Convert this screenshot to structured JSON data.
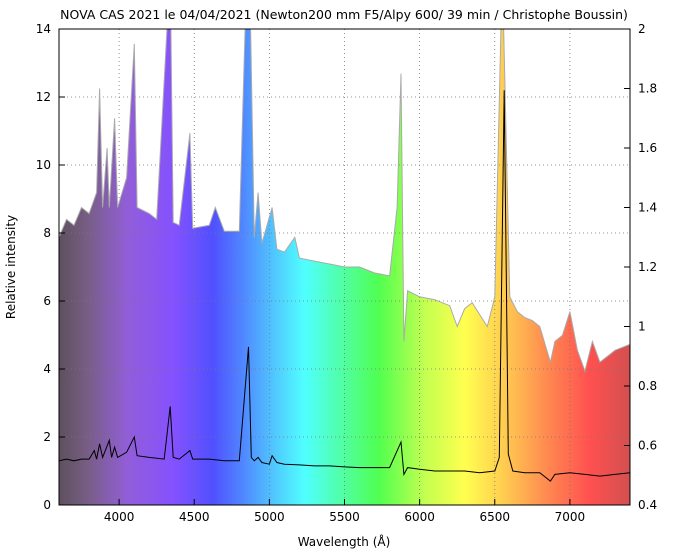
{
  "chart_data": {
    "type": "line",
    "title": "NOVA CAS 2021 le 04/04/2021 (Newton200 mm F5/Alpy 600/ 39 min / Christophe Boussin)",
    "xlabel": "Wavelength (Å)",
    "ylabel": "Relative intensity",
    "xlim": [
      3600,
      7400
    ],
    "ylim": [
      0,
      14
    ],
    "y2lim": [
      0.4,
      2
    ],
    "xticks": [
      4000,
      4500,
      5000,
      5500,
      6000,
      6500,
      7000
    ],
    "yticks": [
      0,
      2,
      4,
      6,
      8,
      10,
      12,
      14
    ],
    "y2ticks": [
      0.4,
      0.6,
      0.8,
      1,
      1.2,
      1.4,
      1.6,
      1.8,
      2
    ],
    "grid": true,
    "series": [
      {
        "axis": "right",
        "color": "#aaaaaa",
        "values": [
          [
            3600,
            1.3
          ],
          [
            3650,
            1.36
          ],
          [
            3700,
            1.34
          ],
          [
            3750,
            1.4
          ],
          [
            3800,
            1.38
          ],
          [
            3850,
            1.45
          ],
          [
            3870,
            1.8
          ],
          [
            3890,
            1.4
          ],
          [
            3920,
            1.6
          ],
          [
            3935,
            1.4
          ],
          [
            3970,
            1.7
          ],
          [
            3990,
            1.4
          ],
          [
            4050,
            1.5
          ],
          [
            4101,
            1.95
          ],
          [
            4120,
            1.4
          ],
          [
            4200,
            1.38
          ],
          [
            4250,
            1.36
          ],
          [
            4340,
            2.2
          ],
          [
            4360,
            1.35
          ],
          [
            4400,
            1.34
          ],
          [
            4471,
            1.65
          ],
          [
            4490,
            1.33
          ],
          [
            4600,
            1.34
          ],
          [
            4640,
            1.4
          ],
          [
            4700,
            1.32
          ],
          [
            4800,
            1.32
          ],
          [
            4861,
            2.4
          ],
          [
            4900,
            1.3
          ],
          [
            4925,
            1.45
          ],
          [
            4950,
            1.28
          ],
          [
            5018,
            1.4
          ],
          [
            5050,
            1.26
          ],
          [
            5100,
            1.25
          ],
          [
            5169,
            1.3
          ],
          [
            5200,
            1.23
          ],
          [
            5300,
            1.22
          ],
          [
            5400,
            1.21
          ],
          [
            5500,
            1.2
          ],
          [
            5600,
            1.2
          ],
          [
            5700,
            1.18
          ],
          [
            5800,
            1.17
          ],
          [
            5850,
            1.4
          ],
          [
            5876,
            1.85
          ],
          [
            5895,
            0.95
          ],
          [
            5920,
            1.12
          ],
          [
            6000,
            1.1
          ],
          [
            6100,
            1.09
          ],
          [
            6200,
            1.07
          ],
          [
            6250,
            1.0
          ],
          [
            6300,
            1.06
          ],
          [
            6350,
            1.08
          ],
          [
            6400,
            1.04
          ],
          [
            6450,
            1.0
          ],
          [
            6500,
            1.1
          ],
          [
            6550,
            2.2
          ],
          [
            6600,
            1.1
          ],
          [
            6650,
            1.05
          ],
          [
            6700,
            1.03
          ],
          [
            6750,
            1.02
          ],
          [
            6800,
            1.0
          ],
          [
            6870,
            0.88
          ],
          [
            6900,
            0.95
          ],
          [
            6950,
            0.97
          ],
          [
            7000,
            1.05
          ],
          [
            7050,
            0.92
          ],
          [
            7100,
            0.85
          ],
          [
            7150,
            0.95
          ],
          [
            7200,
            0.88
          ],
          [
            7250,
            0.9
          ],
          [
            7300,
            0.92
          ],
          [
            7400,
            0.94
          ]
        ]
      },
      {
        "axis": "left",
        "color": "#000000",
        "values": [
          [
            3600,
            1.3
          ],
          [
            3650,
            1.35
          ],
          [
            3700,
            1.3
          ],
          [
            3750,
            1.35
          ],
          [
            3800,
            1.35
          ],
          [
            3835,
            1.6
          ],
          [
            3850,
            1.35
          ],
          [
            3870,
            1.8
          ],
          [
            3890,
            1.4
          ],
          [
            3935,
            1.9
          ],
          [
            3950,
            1.4
          ],
          [
            3970,
            1.7
          ],
          [
            3990,
            1.4
          ],
          [
            4050,
            1.55
          ],
          [
            4101,
            2.0
          ],
          [
            4120,
            1.45
          ],
          [
            4200,
            1.4
          ],
          [
            4300,
            1.35
          ],
          [
            4340,
            2.9
          ],
          [
            4360,
            1.4
          ],
          [
            4400,
            1.35
          ],
          [
            4471,
            1.6
          ],
          [
            4490,
            1.35
          ],
          [
            4600,
            1.35
          ],
          [
            4700,
            1.3
          ],
          [
            4800,
            1.3
          ],
          [
            4861,
            4.65
          ],
          [
            4880,
            1.4
          ],
          [
            4900,
            1.3
          ],
          [
            4925,
            1.4
          ],
          [
            4950,
            1.25
          ],
          [
            5000,
            1.2
          ],
          [
            5018,
            1.45
          ],
          [
            5050,
            1.25
          ],
          [
            5100,
            1.2
          ],
          [
            5200,
            1.18
          ],
          [
            5300,
            1.15
          ],
          [
            5400,
            1.15
          ],
          [
            5500,
            1.12
          ],
          [
            5600,
            1.1
          ],
          [
            5700,
            1.1
          ],
          [
            5800,
            1.1
          ],
          [
            5876,
            1.85
          ],
          [
            5895,
            0.9
          ],
          [
            5920,
            1.1
          ],
          [
            6000,
            1.05
          ],
          [
            6100,
            1.0
          ],
          [
            6200,
            1.0
          ],
          [
            6300,
            1.0
          ],
          [
            6400,
            0.95
          ],
          [
            6500,
            1.0
          ],
          [
            6530,
            1.4
          ],
          [
            6563,
            12.2
          ],
          [
            6590,
            1.5
          ],
          [
            6620,
            1.0
          ],
          [
            6700,
            0.95
          ],
          [
            6800,
            0.95
          ],
          [
            6870,
            0.7
          ],
          [
            6900,
            0.9
          ],
          [
            7000,
            0.95
          ],
          [
            7100,
            0.9
          ],
          [
            7200,
            0.85
          ],
          [
            7300,
            0.9
          ],
          [
            7400,
            0.95
          ]
        ]
      }
    ]
  }
}
